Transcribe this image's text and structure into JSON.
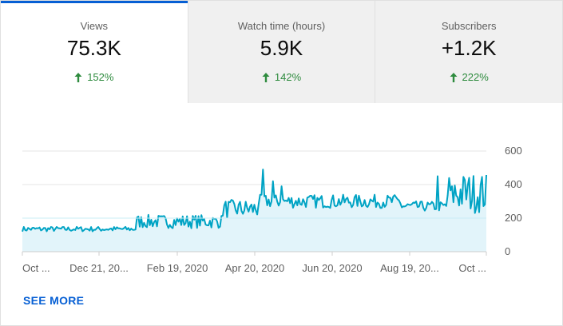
{
  "tabs": [
    {
      "label": "Views",
      "value": "75.3K",
      "change": "152%"
    },
    {
      "label": "Watch time (hours)",
      "value": "5.9K",
      "change": "142%"
    },
    {
      "label": "Subscribers",
      "value": "+1.2K",
      "change": "222%"
    }
  ],
  "colors": {
    "accent": "#065fd4",
    "line": "#00a3c4",
    "fill": "#e2f4fa",
    "positive": "#2e8b3e"
  },
  "see_more": "SEE MORE",
  "chart_data": {
    "type": "area",
    "x_tick_labels": [
      "Oct ...",
      "Dec 21, 20...",
      "Feb 19, 2020",
      "Apr 20, 2020",
      "Jun 20, 2020",
      "Aug 19, 20...",
      "Oct ..."
    ],
    "y_ticks": [
      0,
      200,
      400,
      600
    ],
    "ylim": [
      0,
      600
    ],
    "grid": true,
    "baseline": 200,
    "segments": [
      {
        "days": 80,
        "values": [
          120,
          150
        ]
      },
      {
        "days": 60,
        "values": [
          140,
          220
        ]
      },
      {
        "days": 25,
        "values": [
          200,
          310
        ]
      },
      {
        "days": 100,
        "values": [
          260,
          340
        ]
      },
      {
        "days": 32,
        "values": [
          240,
          300
        ]
      },
      {
        "days": 28,
        "values": [
          230,
          470
        ]
      }
    ],
    "peaks": [
      {
        "day": 168,
        "value": 490
      },
      {
        "day": 175,
        "value": 420
      },
      {
        "day": 181,
        "value": 390
      },
      {
        "day": 290,
        "value": 450
      },
      {
        "day": 300,
        "value": 390
      }
    ]
  }
}
